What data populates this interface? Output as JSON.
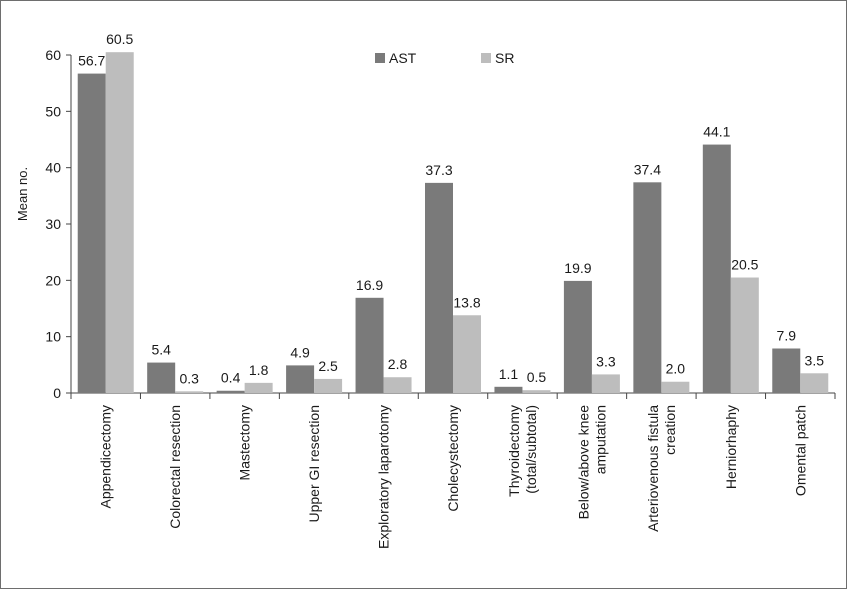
{
  "chart_data": {
    "type": "bar",
    "title": "",
    "xlabel": "",
    "ylabel": "Mean no.",
    "ylim": [
      0,
      60
    ],
    "yticks": [
      "0",
      "10",
      "20",
      "30",
      "40",
      "50",
      "60"
    ],
    "grid": false,
    "legend_position": "top-center",
    "categories": [
      [
        "Appendicectomy"
      ],
      [
        "Colorectal resection"
      ],
      [
        "Mastectomy"
      ],
      [
        "Upper GI resection"
      ],
      [
        "Exploratory laparotomy"
      ],
      [
        "Cholecystectomy"
      ],
      [
        "Thyroidectomy",
        "(total/subtotal)"
      ],
      [
        "Below/above knee",
        "amputation"
      ],
      [
        "Arteriovenous fistula",
        "creation"
      ],
      [
        "Herniorhaphy"
      ],
      [
        "Omental patch"
      ]
    ],
    "series": [
      {
        "name": "AST",
        "color": "#7a7a7a",
        "values": [
          56.7,
          5.4,
          0.4,
          4.9,
          16.9,
          37.3,
          1.1,
          19.9,
          37.4,
          44.1,
          7.9
        ],
        "labels": [
          "56.7",
          "5.4",
          "0.4",
          "4.9",
          "16.9",
          "37.3",
          "1.1",
          "19.9",
          "37.4",
          "44.1",
          "7.9"
        ]
      },
      {
        "name": "SR",
        "color": "#bdbdbd",
        "values": [
          60.5,
          0.3,
          1.8,
          2.5,
          2.8,
          13.8,
          0.5,
          3.3,
          2.0,
          20.5,
          3.5
        ],
        "labels": [
          "60.5",
          "0.3",
          "1.8",
          "2.5",
          "2.8",
          "13.8",
          "0.5",
          "3.3",
          "2.0",
          "20.5",
          "3.5"
        ]
      }
    ]
  }
}
